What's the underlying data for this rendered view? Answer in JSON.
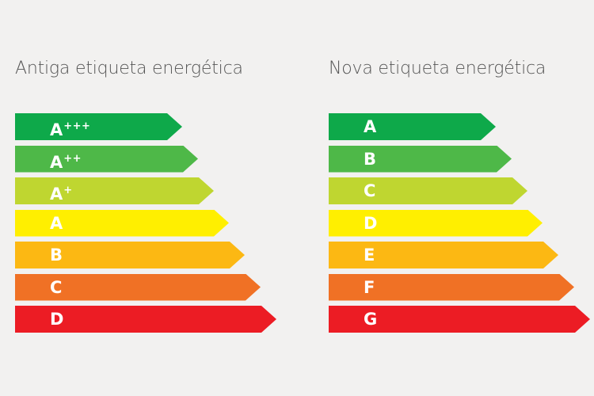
{
  "colors": {
    "background": "#f2f1f0",
    "dark_green": "#0ea94a",
    "green": "#4eb848",
    "lime": "#bfd630",
    "yellow": "#ffef00",
    "amber": "#fcb813",
    "orange": "#f07125",
    "red": "#ec1c24"
  },
  "old_label": {
    "title": "Antiga etiqueta energética",
    "classes": [
      {
        "letter": "A",
        "plus": "+++",
        "color": "#0ea94a",
        "width": 211
      },
      {
        "letter": "A",
        "plus": "++",
        "color": "#4eb848",
        "width": 231
      },
      {
        "letter": "A",
        "plus": "+",
        "color": "#bfd630",
        "width": 251
      },
      {
        "letter": "A",
        "plus": "",
        "color": "#ffef00",
        "width": 270
      },
      {
        "letter": "B",
        "plus": "",
        "color": "#fcb813",
        "width": 290
      },
      {
        "letter": "C",
        "plus": "",
        "color": "#f07125",
        "width": 310
      },
      {
        "letter": "D",
        "plus": "",
        "color": "#ec1c24",
        "width": 330
      }
    ]
  },
  "new_label": {
    "title": "Nova etiqueta energética",
    "classes": [
      {
        "letter": "A",
        "plus": "",
        "color": "#0ea94a",
        "width": 211
      },
      {
        "letter": "B",
        "plus": "",
        "color": "#4eb848",
        "width": 231
      },
      {
        "letter": "C",
        "plus": "",
        "color": "#bfd630",
        "width": 251
      },
      {
        "letter": "D",
        "plus": "",
        "color": "#ffef00",
        "width": 270
      },
      {
        "letter": "E",
        "plus": "",
        "color": "#fcb813",
        "width": 290
      },
      {
        "letter": "F",
        "plus": "",
        "color": "#f07125",
        "width": 310
      },
      {
        "letter": "G",
        "plus": "",
        "color": "#ec1c24",
        "width": 330
      }
    ]
  }
}
